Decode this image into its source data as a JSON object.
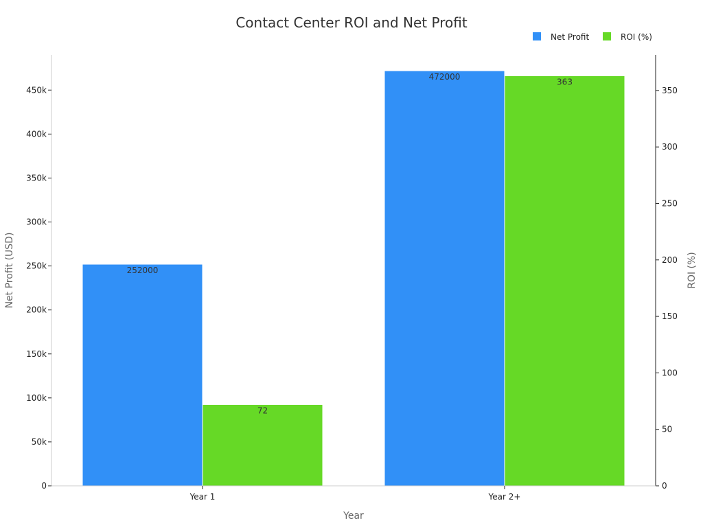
{
  "chart_data": {
    "type": "bar",
    "title": "Contact Center ROI and Net Profit",
    "xlabel": "Year",
    "categories": [
      "Year 1",
      "Year 2+"
    ],
    "series": [
      {
        "name": "Net Profit",
        "axis": "left",
        "color": "#3190f7",
        "values": [
          252000,
          472000
        ],
        "data_labels": [
          "252000",
          "472000"
        ]
      },
      {
        "name": "ROI (%)",
        "axis": "right",
        "color": "#66d926",
        "values": [
          72,
          363
        ],
        "data_labels": [
          "72",
          "363"
        ]
      }
    ],
    "y_left": {
      "label": "Net Profit (USD)",
      "range": [
        0,
        490000
      ],
      "ticks": [
        0,
        50000,
        100000,
        150000,
        200000,
        250000,
        300000,
        350000,
        400000,
        450000
      ],
      "tick_labels": [
        "0",
        "50k",
        "100k",
        "150k",
        "200k",
        "250k",
        "300k",
        "350k",
        "400k",
        "450k"
      ]
    },
    "y_right": {
      "label": "ROI (%)",
      "range": [
        0,
        381.5
      ],
      "ticks": [
        0,
        50,
        100,
        150,
        200,
        250,
        300,
        350
      ],
      "tick_labels": [
        "0",
        "50",
        "100",
        "150",
        "200",
        "250",
        "300",
        "350"
      ]
    },
    "legend": {
      "position": "top-right"
    },
    "grid": false
  }
}
